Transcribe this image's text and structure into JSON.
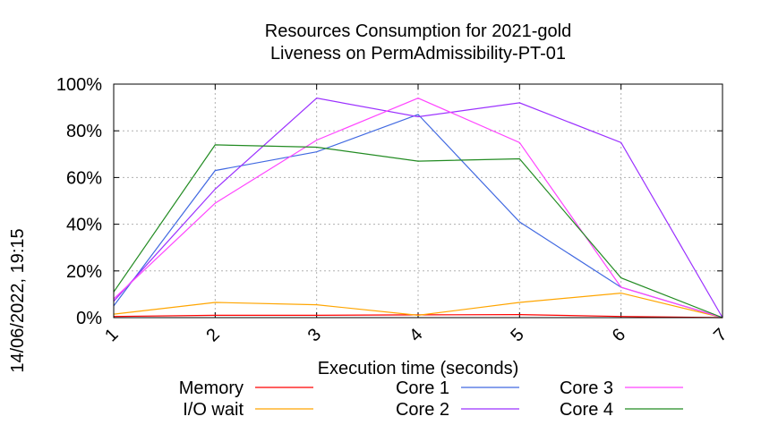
{
  "chart_data": {
    "type": "line",
    "title": [
      "Resources Consumption for 2021-gold",
      "Liveness on PermAdmissibility-PT-01"
    ],
    "xlabel": "Execution time (seconds)",
    "ylabel": "",
    "x": [
      1,
      2,
      3,
      4,
      5,
      6,
      7
    ],
    "x_tick_labels": [
      "1",
      "2",
      "3",
      "4",
      "5",
      "6",
      "7"
    ],
    "xlim": [
      1,
      7
    ],
    "ylim": [
      0,
      100
    ],
    "y_ticks": [
      0,
      20,
      40,
      60,
      80,
      100
    ],
    "y_tick_labels": [
      "0%",
      "20%",
      "40%",
      "60%",
      "80%",
      "100%"
    ],
    "grid": true,
    "legend_position": "bottom",
    "series": [
      {
        "name": "Memory",
        "color": "#ff0000",
        "values": [
          0.5,
          1,
          1,
          1.2,
          1.3,
          0.5,
          0
        ]
      },
      {
        "name": "I/O wait",
        "color": "#ffa500",
        "values": [
          1.5,
          6.5,
          5.5,
          1,
          6.5,
          10.5,
          0
        ]
      },
      {
        "name": "Core 1",
        "color": "#4169e1",
        "values": [
          5,
          63,
          71,
          87,
          41,
          13,
          0
        ]
      },
      {
        "name": "Core 2",
        "color": "#9b30ff",
        "values": [
          7,
          55,
          94,
          86,
          92,
          75,
          0
        ]
      },
      {
        "name": "Core 3",
        "color": "#ff44ff",
        "values": [
          8,
          49,
          76,
          94,
          75,
          13,
          0
        ]
      },
      {
        "name": "Core 4",
        "color": "#228b22",
        "values": [
          11,
          74,
          73,
          67,
          68,
          17,
          0
        ]
      }
    ]
  },
  "timestamp": "14/06/2022, 19:15"
}
